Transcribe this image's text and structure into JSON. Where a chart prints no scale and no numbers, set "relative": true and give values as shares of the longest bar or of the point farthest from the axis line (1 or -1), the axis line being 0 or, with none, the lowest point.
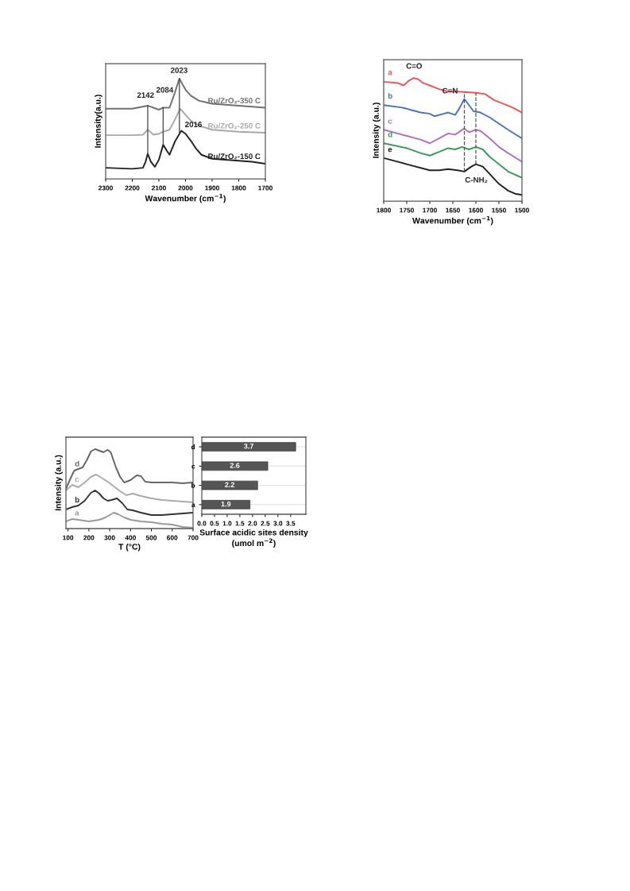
{
  "chart_data": [
    {
      "type": "line",
      "relative": true,
      "xlabel": "Wavenumber (cm$^{−1}$)",
      "ylabel": "Intensity(a.u.)",
      "xlim": [
        2300,
        1700
      ],
      "xticks": [
        2300,
        2200,
        2100,
        2000,
        1900,
        1800,
        1700
      ],
      "tick_labels": "x",
      "grid": false,
      "series": [
        {
          "name": "Ru/ZrO₂-350 C",
          "color": "#707070",
          "x": [
            2300,
            2200,
            2142,
            2100,
            2084,
            2060,
            2040,
            2023,
            2000,
            1980,
            1950,
            1900,
            1800,
            1700
          ],
          "values": [
            0.7,
            0.7,
            0.73,
            0.69,
            0.71,
            0.71,
            0.86,
            1.0,
            0.89,
            0.83,
            0.78,
            0.75,
            0.73,
            0.71
          ]
        },
        {
          "name": "Ru/ZrO₂-250 C",
          "color": "#a8a8a8",
          "x": [
            2300,
            2200,
            2160,
            2142,
            2120,
            2100,
            2084,
            2060,
            2040,
            2020,
            2000,
            1980,
            1950,
            1900,
            1800,
            1700
          ],
          "values": [
            0.435,
            0.435,
            0.44,
            0.49,
            0.44,
            0.45,
            0.47,
            0.49,
            0.59,
            0.7,
            0.64,
            0.58,
            0.53,
            0.49,
            0.47,
            0.46
          ]
        },
        {
          "name": "Ru/ZrO₂-150 C",
          "color": "#222222",
          "x": [
            2300,
            2200,
            2160,
            2150,
            2142,
            2130,
            2115,
            2100,
            2084,
            2070,
            2060,
            2040,
            2016,
            2000,
            1980,
            1960,
            1940,
            1920,
            1900,
            1850,
            1800,
            1750,
            1700
          ],
          "values": [
            0.11,
            0.1,
            0.11,
            0.17,
            0.25,
            0.17,
            0.12,
            0.19,
            0.34,
            0.28,
            0.24,
            0.37,
            0.48,
            0.45,
            0.38,
            0.3,
            0.24,
            0.22,
            0.2,
            0.19,
            0.18,
            0.17,
            0.15
          ]
        }
      ],
      "ref_lines": [
        {
          "axis": "x",
          "value": 2142,
          "color": "#444444",
          "line_style": "solid"
        },
        {
          "axis": "x",
          "value": 2084,
          "color": "#444444",
          "line_style": "solid"
        },
        {
          "axis": "x",
          "value": 2023,
          "color": "#444444",
          "line_style": "solid"
        }
      ],
      "annotations": [
        "2142",
        "2084",
        "2023",
        "2016"
      ]
    },
    {
      "type": "line",
      "relative": true,
      "xlabel": "Wavenumber (cm$^{−1}$)",
      "ylabel": "Intensity (a.u.)",
      "xlim": [
        1800,
        1500
      ],
      "xticks": [
        1800,
        1750,
        1700,
        1650,
        1600,
        1550,
        1500
      ],
      "tick_labels": "x",
      "grid": false,
      "series": [
        {
          "name": "a",
          "color": "#ee5555",
          "x": [
            1800,
            1770,
            1757,
            1745,
            1735,
            1725,
            1715,
            1700,
            1680,
            1660,
            1640,
            1600,
            1580,
            1560,
            1540,
            1520,
            1500
          ],
          "values": [
            0.97,
            0.96,
            0.94,
            0.98,
            1.0,
            0.99,
            0.96,
            0.94,
            0.91,
            0.89,
            0.89,
            0.88,
            0.87,
            0.82,
            0.79,
            0.76,
            0.72
          ]
        },
        {
          "name": "b",
          "color": "#4a72c4",
          "x": [
            1800,
            1760,
            1730,
            1720,
            1700,
            1690,
            1670,
            1660,
            1645,
            1635,
            1625,
            1615,
            1605,
            1590,
            1570,
            1550,
            1530,
            1500
          ],
          "values": [
            0.78,
            0.76,
            0.73,
            0.72,
            0.71,
            0.69,
            0.71,
            0.72,
            0.7,
            0.76,
            0.83,
            0.78,
            0.73,
            0.72,
            0.68,
            0.63,
            0.58,
            0.51
          ]
        },
        {
          "name": "c",
          "color": "#b070c0",
          "x": [
            1800,
            1750,
            1720,
            1700,
            1680,
            1660,
            1645,
            1625,
            1615,
            1600,
            1590,
            1570,
            1550,
            1530,
            1500
          ],
          "values": [
            0.58,
            0.53,
            0.5,
            0.47,
            0.51,
            0.55,
            0.54,
            0.59,
            0.56,
            0.58,
            0.57,
            0.51,
            0.44,
            0.39,
            0.32
          ]
        },
        {
          "name": "d",
          "color": "#3a9a5a",
          "x": [
            1800,
            1750,
            1720,
            1700,
            1680,
            1660,
            1645,
            1630,
            1615,
            1600,
            1585,
            1570,
            1550,
            1530,
            1500
          ],
          "values": [
            0.47,
            0.43,
            0.39,
            0.37,
            0.4,
            0.43,
            0.42,
            0.44,
            0.42,
            0.44,
            0.42,
            0.36,
            0.3,
            0.24,
            0.19
          ]
        },
        {
          "name": "e",
          "color": "#222222",
          "x": [
            1800,
            1750,
            1700,
            1680,
            1660,
            1640,
            1625,
            1610,
            1600,
            1585,
            1570,
            1550,
            1530,
            1515,
            1500
          ],
          "values": [
            0.35,
            0.3,
            0.25,
            0.25,
            0.26,
            0.25,
            0.24,
            0.28,
            0.3,
            0.28,
            0.22,
            0.14,
            0.085,
            0.06,
            0.05
          ]
        }
      ],
      "ref_lines": [
        {
          "axis": "x",
          "value": 1625,
          "color": "#555555",
          "line_style": "dashed"
        },
        {
          "axis": "x",
          "value": 1600,
          "color": "#555555",
          "line_style": "dashed"
        }
      ],
      "annotations": [
        "C=O",
        "C=N",
        "C-NH₂"
      ]
    },
    {
      "type": "line",
      "relative": true,
      "xlabel": "T (°C)",
      "ylabel": "Intensity (a.u.)",
      "xlim": [
        90,
        700
      ],
      "xticks": [
        100,
        200,
        300,
        400,
        500,
        600,
        700
      ],
      "tick_labels": "x",
      "grid": false,
      "series": [
        {
          "name": "d",
          "color": "#666666",
          "x": [
            90,
            110,
            130,
            150,
            170,
            190,
            210,
            230,
            250,
            270,
            290,
            305,
            330,
            350,
            370,
            400,
            430,
            450,
            470,
            500,
            550,
            600,
            650,
            700
          ],
          "values": [
            0.5,
            0.62,
            0.73,
            0.75,
            0.77,
            0.86,
            0.97,
            1.0,
            0.98,
            0.96,
            0.99,
            0.96,
            0.77,
            0.65,
            0.58,
            0.61,
            0.67,
            0.66,
            0.59,
            0.58,
            0.58,
            0.58,
            0.57,
            0.58
          ]
        },
        {
          "name": "c",
          "color": "#aaaaaa",
          "x": [
            90,
            120,
            150,
            180,
            210,
            235,
            260,
            290,
            320,
            350,
            380,
            410,
            450,
            500,
            550,
            600,
            650,
            700
          ],
          "values": [
            0.48,
            0.55,
            0.52,
            0.58,
            0.65,
            0.68,
            0.64,
            0.59,
            0.53,
            0.47,
            0.42,
            0.44,
            0.41,
            0.38,
            0.36,
            0.35,
            0.34,
            0.33
          ]
        },
        {
          "name": "b",
          "color": "#333333",
          "x": [
            90,
            120,
            150,
            180,
            210,
            230,
            250,
            270,
            290,
            310,
            335,
            360,
            385,
            410,
            450,
            500,
            550,
            600,
            650,
            700
          ],
          "values": [
            0.24,
            0.27,
            0.29,
            0.35,
            0.45,
            0.48,
            0.44,
            0.38,
            0.35,
            0.36,
            0.38,
            0.32,
            0.24,
            0.23,
            0.2,
            0.17,
            0.17,
            0.18,
            0.19,
            0.2
          ]
        },
        {
          "name": "a",
          "color": "#999999",
          "x": [
            90,
            120,
            150,
            200,
            250,
            280,
            300,
            320,
            340,
            370,
            400,
            450,
            500,
            550,
            600,
            650,
            700
          ],
          "values": [
            0.09,
            0.12,
            0.11,
            0.09,
            0.11,
            0.14,
            0.17,
            0.2,
            0.18,
            0.14,
            0.11,
            0.09,
            0.08,
            0.06,
            0.05,
            0.02,
            0.01
          ]
        }
      ]
    },
    {
      "type": "bar",
      "orientation": "horizontal",
      "categories": [
        "d",
        "c",
        "b",
        "a"
      ],
      "values": [
        3.7,
        2.6,
        2.2,
        1.9
      ],
      "color": "#555555",
      "data_labels": true,
      "xlabel": "Surface acidic sites density\n(umol m$^{−2}$)",
      "xlim": [
        0,
        4.1
      ],
      "xticks": [
        {
          "value": 0,
          "label": "0.0"
        },
        0.5,
        {
          "value": 1,
          "label": "1.0"
        },
        1.5,
        {
          "value": 2,
          "label": "2.0"
        },
        2.5,
        {
          "value": 3,
          "label": "3.0"
        },
        3.5
      ],
      "grid": "y"
    }
  ]
}
